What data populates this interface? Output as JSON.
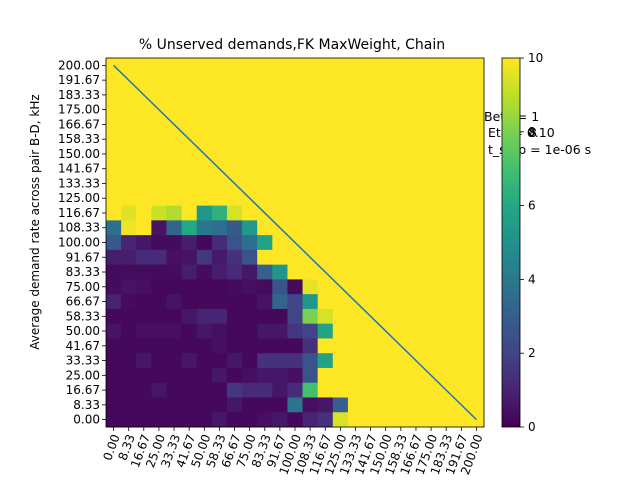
{
  "chart_data": {
    "type": "heatmap",
    "title": "% Unserved demands,FK MaxWeight, Chain",
    "ylabel": "Average demand rate across pair B-D, kHz",
    "xlabel": "",
    "x_ticks": [
      "0.00",
      "8.33",
      "16.67",
      "25.00",
      "33.33",
      "41.67",
      "50.00",
      "58.33",
      "66.67",
      "75.00",
      "83.33",
      "91.67",
      "100.00",
      "108.33",
      "116.67",
      "125.00",
      "133.33",
      "141.67",
      "150.00",
      "158.33",
      "166.67",
      "175.00",
      "183.33",
      "191.67",
      "200.00"
    ],
    "y_ticks": [
      "200.00",
      "191.67",
      "183.33",
      "175.00",
      "166.67",
      "158.33",
      "150.00",
      "141.67",
      "133.33",
      "125.00",
      "116.67",
      "108.33",
      "100.00",
      "91.67",
      "83.33",
      "75.00",
      "66.67",
      "58.33",
      "50.00",
      "41.67",
      "33.33",
      "25.00",
      "16.67",
      "8.33",
      "0.00"
    ],
    "colorbar": {
      "min": 0,
      "max": 10,
      "ticks": [
        "0",
        "2",
        "4",
        "6",
        "8",
        "10"
      ],
      "colormap": "viridis"
    },
    "grid": false,
    "values_top_to_bottom": [
      [
        10,
        10,
        10,
        10,
        10,
        10,
        10,
        10,
        10,
        10,
        10,
        10,
        10,
        10,
        10,
        10,
        10,
        10,
        10,
        10,
        10,
        10,
        10,
        10,
        10
      ],
      [
        10,
        10,
        10,
        10,
        10,
        10,
        10,
        10,
        10,
        10,
        10,
        10,
        10,
        10,
        10,
        10,
        10,
        10,
        10,
        10,
        10,
        10,
        10,
        10,
        10
      ],
      [
        10,
        10,
        10,
        10,
        10,
        10,
        10,
        10,
        10,
        10,
        10,
        10,
        10,
        10,
        10,
        10,
        10,
        10,
        10,
        10,
        10,
        10,
        10,
        10,
        10
      ],
      [
        10,
        10,
        10,
        10,
        10,
        10,
        10,
        10,
        10,
        10,
        10,
        10,
        10,
        10,
        10,
        10,
        10,
        10,
        10,
        10,
        10,
        10,
        10,
        10,
        10
      ],
      [
        10,
        10,
        10,
        10,
        10,
        10,
        10,
        10,
        10,
        10,
        10,
        10,
        10,
        10,
        10,
        10,
        10,
        10,
        10,
        10,
        10,
        10,
        10,
        10,
        10
      ],
      [
        10,
        10,
        10,
        10,
        10,
        10,
        10,
        10,
        10,
        10,
        10,
        10,
        10,
        10,
        10,
        10,
        10,
        10,
        10,
        10,
        10,
        10,
        10,
        10,
        10
      ],
      [
        10,
        10,
        10,
        10,
        10,
        10,
        10,
        10,
        10,
        10,
        10,
        10,
        10,
        10,
        10,
        10,
        10,
        10,
        10,
        10,
        10,
        10,
        10,
        10,
        10
      ],
      [
        10,
        10,
        10,
        10,
        10,
        10,
        10,
        10,
        10,
        10,
        10,
        10,
        10,
        10,
        10,
        10,
        10,
        10,
        10,
        10,
        10,
        10,
        10,
        10,
        10
      ],
      [
        10,
        10,
        10,
        10,
        10,
        10,
        10,
        10,
        10,
        10,
        10,
        10,
        10,
        10,
        10,
        10,
        10,
        10,
        10,
        10,
        10,
        10,
        10,
        10,
        10
      ],
      [
        10,
        10,
        10,
        10,
        10,
        10,
        10,
        10,
        10,
        10,
        10,
        10,
        10,
        10,
        10,
        10,
        10,
        10,
        10,
        10,
        10,
        10,
        10,
        10,
        10
      ],
      [
        10,
        9.5,
        10,
        9.2,
        8.8,
        10,
        5.2,
        6.4,
        9.4,
        10,
        10,
        10,
        10,
        10,
        10,
        10,
        10,
        10,
        10,
        10,
        10,
        10,
        10,
        10,
        10
      ],
      [
        3.6,
        9.8,
        10,
        0.5,
        3.2,
        6.0,
        4.0,
        3.6,
        2.8,
        5.4,
        10,
        10,
        10,
        10,
        10,
        10,
        10,
        10,
        10,
        10,
        10,
        10,
        10,
        10,
        10
      ],
      [
        2.8,
        1.0,
        0.6,
        0.3,
        0.3,
        0.8,
        0.2,
        1.2,
        2.6,
        3.6,
        5.8,
        10,
        10,
        10,
        10,
        10,
        10,
        10,
        10,
        10,
        10,
        10,
        10,
        10,
        10
      ],
      [
        0.8,
        0.8,
        1.2,
        1.2,
        0.4,
        0.5,
        1.6,
        0.7,
        1.4,
        2.6,
        10,
        10,
        10,
        10,
        10,
        10,
        10,
        10,
        10,
        10,
        10,
        10,
        10,
        10,
        10
      ],
      [
        0.3,
        0.3,
        0.3,
        0.3,
        0.3,
        0.8,
        0.3,
        0.8,
        1.2,
        0.6,
        3.0,
        5.2,
        10,
        10,
        10,
        10,
        10,
        10,
        10,
        10,
        10,
        10,
        10,
        10,
        10
      ],
      [
        0.3,
        0.5,
        0.4,
        0.2,
        0.2,
        0.2,
        0.2,
        0.2,
        0.3,
        0.4,
        0.3,
        2.6,
        0.3,
        9.6,
        10,
        10,
        10,
        10,
        10,
        10,
        10,
        10,
        10,
        10,
        10
      ],
      [
        0.9,
        0.3,
        0.2,
        0.2,
        0.5,
        0.2,
        0.2,
        0.2,
        0.2,
        0.2,
        0.5,
        3.2,
        2.0,
        5.2,
        10,
        10,
        10,
        10,
        10,
        10,
        10,
        10,
        10,
        10,
        10
      ],
      [
        0.2,
        0.2,
        0.2,
        0.2,
        0.2,
        0.6,
        1.0,
        1.0,
        0.2,
        0.2,
        0.2,
        0.2,
        2.0,
        8.0,
        9.4,
        10,
        10,
        10,
        10,
        10,
        10,
        10,
        10,
        10,
        10
      ],
      [
        0.5,
        0.2,
        0.4,
        0.4,
        0.4,
        0.2,
        0.6,
        0.4,
        0.2,
        0.2,
        0.6,
        0.6,
        1.6,
        2.0,
        5.8,
        10,
        10,
        10,
        10,
        10,
        10,
        10,
        10,
        10,
        10
      ],
      [
        0.2,
        0.2,
        0.2,
        0.2,
        0.2,
        0.2,
        0.2,
        0.4,
        0.2,
        0.2,
        0.2,
        0.2,
        0.2,
        1.4,
        10,
        10,
        10,
        10,
        10,
        10,
        10,
        10,
        10,
        10,
        10
      ],
      [
        0.2,
        0.2,
        0.6,
        0.2,
        0.2,
        0.6,
        0.2,
        0.2,
        0.6,
        0.2,
        1.4,
        1.4,
        1.4,
        2.6,
        5.8,
        10,
        10,
        10,
        10,
        10,
        10,
        10,
        10,
        10,
        10
      ],
      [
        0.2,
        0.2,
        0.2,
        0.2,
        0.2,
        0.2,
        0.2,
        0.6,
        0.2,
        0.4,
        0.6,
        0.6,
        0.4,
        2.6,
        10,
        10,
        10,
        10,
        10,
        10,
        10,
        10,
        10,
        10,
        10
      ],
      [
        0.2,
        0.2,
        0.2,
        0.6,
        0.2,
        0.2,
        0.2,
        0.2,
        1.6,
        1.2,
        1.2,
        0.6,
        1.2,
        7.0,
        10,
        10,
        10,
        10,
        10,
        10,
        10,
        10,
        10,
        10,
        10
      ],
      [
        0.2,
        0.2,
        0.2,
        0.2,
        0.2,
        0.2,
        0.2,
        0.2,
        0.6,
        0.2,
        0.2,
        0.2,
        3.8,
        0.4,
        0.6,
        3.0,
        10,
        10,
        10,
        10,
        10,
        10,
        10,
        10,
        10
      ],
      [
        0.2,
        0.2,
        0.2,
        0.2,
        0.2,
        0.2,
        0.2,
        0.6,
        0.2,
        0.2,
        0.4,
        0.6,
        0.2,
        1.0,
        1.4,
        9.4,
        10,
        10,
        10,
        10,
        10,
        10,
        10,
        10,
        10
      ]
    ],
    "diagonal_line": {
      "from": [
        "0.00",
        "200.00"
      ],
      "to": [
        "200.00",
        "0.00"
      ],
      "color": "#1f77b4"
    },
    "annotations": [
      "Beta = 1",
      "Eta = 0.10",
      "t_step = 1e-06 s"
    ],
    "overlap_text": "8"
  }
}
